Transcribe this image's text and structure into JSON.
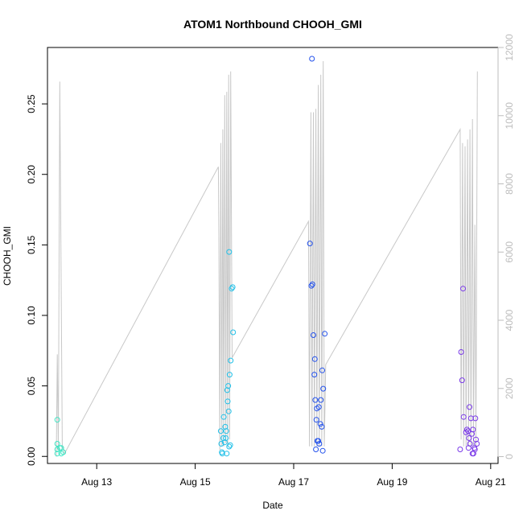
{
  "chart_data": {
    "type": "scatter",
    "title": "ATOM1 Northbound CHOOH_GMI",
    "xlabel": "Date",
    "ylabel": "CHOOH_GMI",
    "xlim": [
      12.0,
      21.15
    ],
    "ylim": [
      -0.005,
      0.29
    ],
    "y2lim": [
      -200,
      12000
    ],
    "x_ticks": [
      {
        "value": 13,
        "label": "Aug 13"
      },
      {
        "value": 15,
        "label": "Aug 15"
      },
      {
        "value": 17,
        "label": "Aug 17"
      },
      {
        "value": 19,
        "label": "Aug 19"
      },
      {
        "value": 21,
        "label": "Aug 21"
      }
    ],
    "y_ticks": [
      "0.00",
      "0.05",
      "0.10",
      "0.15",
      "0.20",
      "0.25"
    ],
    "y2_ticks": [
      "0",
      "2000",
      "4000",
      "6000",
      "8000",
      "10000",
      "12000"
    ],
    "grid": false,
    "series": [
      {
        "color": "#3ee6c4",
        "points": [
          [
            12.2,
            0.026
          ],
          [
            12.2,
            0.009
          ],
          [
            12.2,
            0.005
          ],
          [
            12.2,
            0.002
          ],
          [
            12.25,
            0.006
          ],
          [
            12.28,
            0.002
          ],
          [
            12.32,
            0.003
          ],
          [
            12.28,
            0.006
          ]
        ]
      },
      {
        "color": "#21c0e8",
        "points": [
          [
            15.52,
            0.018
          ],
          [
            15.53,
            0.009
          ],
          [
            15.54,
            0.003
          ],
          [
            15.55,
            0.002
          ],
          [
            15.57,
            0.013
          ],
          [
            15.58,
            0.028
          ],
          [
            15.6,
            0.01
          ],
          [
            15.61,
            0.021
          ],
          [
            15.63,
            0.018
          ],
          [
            15.64,
            0.002
          ],
          [
            15.65,
            0.047
          ],
          [
            15.66,
            0.039
          ],
          [
            15.67,
            0.05
          ],
          [
            15.68,
            0.032
          ],
          [
            15.69,
            0.145
          ],
          [
            15.7,
            0.058
          ],
          [
            15.71,
            0.008
          ],
          [
            15.72,
            0.068
          ],
          [
            15.74,
            0.119
          ],
          [
            15.76,
            0.12
          ],
          [
            15.77,
            0.088
          ],
          [
            15.69,
            0.007
          ],
          [
            15.62,
            0.013
          ]
        ]
      },
      {
        "color": "#2452ec",
        "points": [
          [
            17.33,
            0.151
          ],
          [
            17.36,
            0.121
          ],
          [
            17.37,
            0.282
          ],
          [
            17.38,
            0.122
          ],
          [
            17.4,
            0.086
          ],
          [
            17.42,
            0.058
          ],
          [
            17.43,
            0.069
          ],
          [
            17.44,
            0.04
          ],
          [
            17.45,
            0.005
          ],
          [
            17.46,
            0.026
          ],
          [
            17.47,
            0.034
          ],
          [
            17.48,
            0.011
          ],
          [
            17.5,
            0.011
          ],
          [
            17.51,
            0.035
          ],
          [
            17.52,
            0.009
          ],
          [
            17.54,
            0.023
          ],
          [
            17.55,
            0.04
          ],
          [
            17.57,
            0.021
          ],
          [
            17.58,
            0.061
          ],
          [
            17.59,
            0.004
          ],
          [
            17.6,
            0.048
          ],
          [
            17.63,
            0.087
          ]
        ]
      },
      {
        "color": "#7a3ae8",
        "points": [
          [
            20.38,
            0.005
          ],
          [
            20.4,
            0.074
          ],
          [
            20.42,
            0.054
          ],
          [
            20.44,
            0.119
          ],
          [
            20.45,
            0.028
          ],
          [
            20.5,
            0.017
          ],
          [
            20.52,
            0.019
          ],
          [
            20.54,
            0.018
          ],
          [
            20.55,
            0.006
          ],
          [
            20.56,
            0.013
          ],
          [
            20.57,
            0.035
          ],
          [
            20.58,
            0.009
          ],
          [
            20.6,
            0.027
          ],
          [
            20.62,
            0.016
          ],
          [
            20.63,
            0.002
          ],
          [
            20.64,
            0.019
          ],
          [
            20.65,
            0.002
          ],
          [
            20.67,
            0.006
          ],
          [
            20.68,
            0.005
          ],
          [
            20.69,
            0.027
          ],
          [
            20.7,
            0.012
          ],
          [
            20.72,
            0.009
          ]
        ]
      }
    ],
    "secondary_series": {
      "color": "#c8c8c8",
      "points": [
        [
          12.18,
          0
        ],
        [
          12.2,
          3000
        ],
        [
          12.22,
          200
        ],
        [
          12.25,
          11000
        ],
        [
          12.3,
          300
        ],
        [
          12.35,
          100
        ],
        [
          15.47,
          8500
        ],
        [
          15.48,
          6500
        ],
        [
          15.5,
          200
        ],
        [
          15.52,
          9200
        ],
        [
          15.54,
          300
        ],
        [
          15.56,
          9600
        ],
        [
          15.58,
          300
        ],
        [
          15.6,
          10600
        ],
        [
          15.62,
          400
        ],
        [
          15.64,
          10700
        ],
        [
          15.66,
          300
        ],
        [
          15.68,
          11200
        ],
        [
          15.7,
          500
        ],
        [
          15.72,
          11300
        ],
        [
          15.75,
          2900
        ],
        [
          17.3,
          6900
        ],
        [
          17.32,
          300
        ],
        [
          17.35,
          10100
        ],
        [
          17.37,
          300
        ],
        [
          17.4,
          10100
        ],
        [
          17.42,
          300
        ],
        [
          17.45,
          10200
        ],
        [
          17.47,
          300
        ],
        [
          17.5,
          10900
        ],
        [
          17.52,
          300
        ],
        [
          17.55,
          11200
        ],
        [
          17.57,
          300
        ],
        [
          17.6,
          11600
        ],
        [
          17.62,
          300
        ],
        [
          17.65,
          2700
        ],
        [
          20.38,
          9600
        ],
        [
          20.4,
          500
        ],
        [
          20.43,
          9200
        ],
        [
          20.45,
          300
        ],
        [
          20.48,
          9100
        ],
        [
          20.5,
          300
        ],
        [
          20.53,
          9300
        ],
        [
          20.55,
          300
        ],
        [
          20.58,
          9600
        ],
        [
          20.6,
          300
        ],
        [
          20.63,
          9900
        ],
        [
          20.65,
          300
        ],
        [
          20.68,
          6800
        ],
        [
          20.7,
          300
        ],
        [
          20.73,
          11300
        ]
      ]
    }
  }
}
